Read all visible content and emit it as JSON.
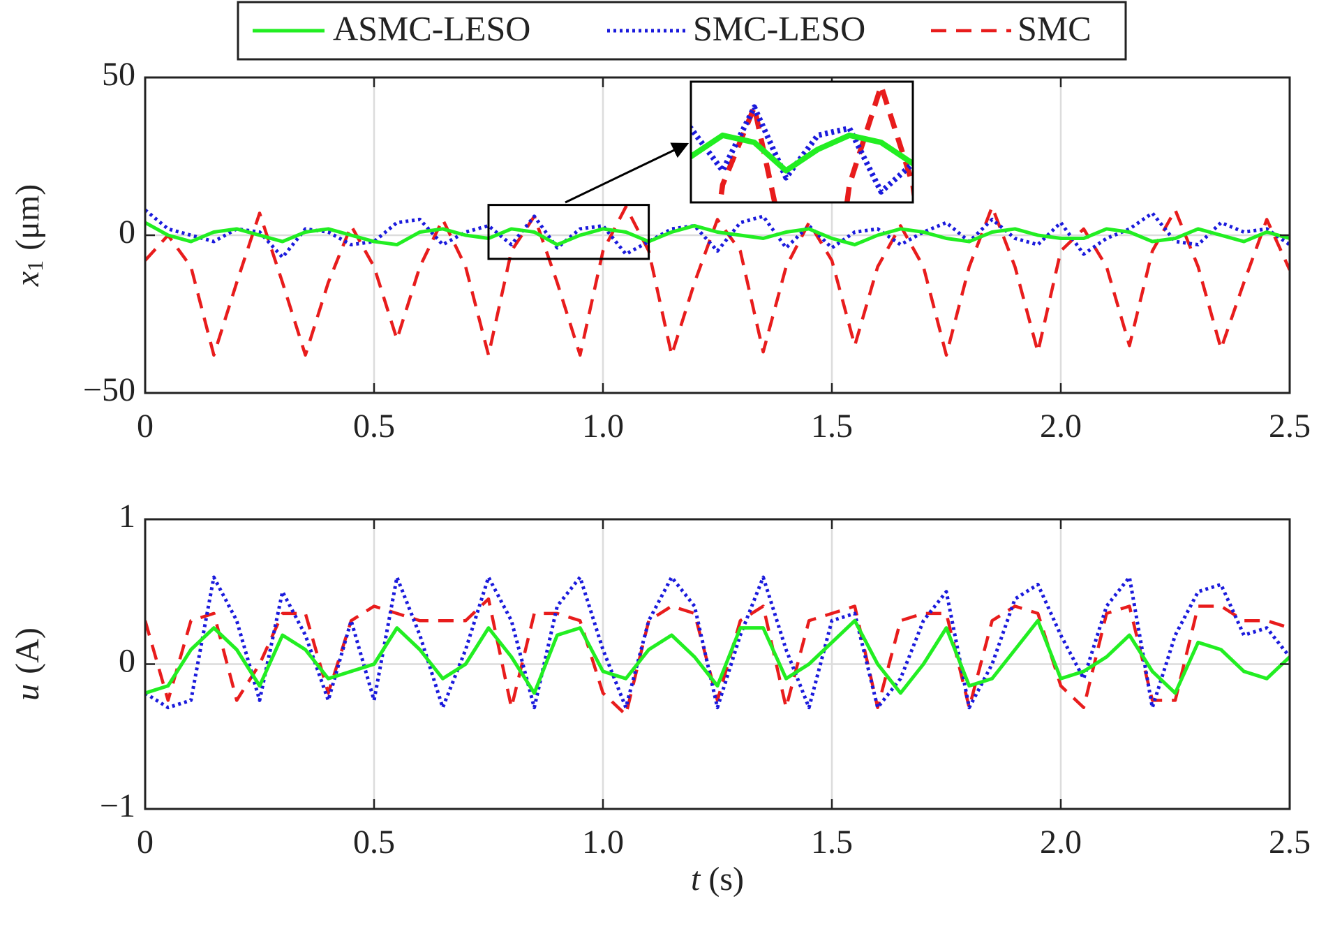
{
  "chart_data": [
    {
      "type": "line",
      "ylabel_symbol": "x",
      "ylabel_subscript": "1",
      "ylabel_unit": "(μm)",
      "x": [
        0,
        0.05,
        0.1,
        0.15,
        0.2,
        0.25,
        0.3,
        0.35,
        0.4,
        0.45,
        0.5,
        0.55,
        0.6,
        0.65,
        0.7,
        0.75,
        0.8,
        0.85,
        0.9,
        0.95,
        1,
        1.05,
        1.1,
        1.15,
        1.2,
        1.25,
        1.3,
        1.35,
        1.4,
        1.45,
        1.5,
        1.55,
        1.6,
        1.65,
        1.7,
        1.75,
        1.8,
        1.85,
        1.9,
        1.95,
        2,
        2.05,
        2.1,
        2.15,
        2.2,
        2.25,
        2.3,
        2.35,
        2.4,
        2.45,
        2.5
      ],
      "xlim": [
        0,
        2.5
      ],
      "xticks": [
        0,
        0.5,
        {
          "value": 1,
          "label": "1.0"
        },
        1.5,
        {
          "value": 2,
          "label": "2.0"
        },
        2.5
      ],
      "ylim": [
        -50,
        50
      ],
      "yticks": [
        {
          "value": -50,
          "label": "−50"
        },
        0,
        50
      ],
      "grid": true,
      "series": [
        {
          "name": "ASMC-LESO",
          "color": "#22ee22",
          "linestyle": "solid",
          "values": [
            4,
            0,
            -2,
            1,
            2,
            0,
            -2,
            1,
            2,
            0,
            -2,
            -3,
            1,
            2,
            0,
            -1,
            2,
            1,
            -3,
            0,
            2,
            1,
            -2,
            1,
            3,
            1,
            0,
            -1,
            1,
            2,
            -1,
            -3,
            0,
            2,
            1,
            -1,
            -2,
            1,
            2,
            0,
            -1,
            -1,
            2,
            1,
            -2,
            -1,
            2,
            0,
            -2,
            1,
            -1
          ]
        },
        {
          "name": "SMC-LESO",
          "color": "#1a1adc",
          "linestyle": "dotted",
          "values": [
            8,
            2,
            0,
            -2,
            2,
            1,
            -7,
            2,
            1,
            -3,
            -2,
            4,
            5,
            -3,
            1,
            3,
            -3,
            6,
            -4,
            2,
            3,
            -6,
            -2,
            2,
            3,
            -5,
            4,
            6,
            -4,
            3,
            -4,
            1,
            2,
            -3,
            1,
            4,
            -2,
            5,
            -1,
            -3,
            4,
            -6,
            -1,
            2,
            7,
            -2,
            -3,
            4,
            1,
            2,
            -3
          ]
        },
        {
          "name": "SMC",
          "color": "#e81c1c",
          "linestyle": "dashed",
          "values": [
            -8,
            0,
            -10,
            -38,
            -15,
            7,
            -15,
            -38,
            -15,
            3,
            -10,
            -33,
            -10,
            5,
            -10,
            -38,
            -5,
            6,
            -15,
            -38,
            -5,
            9,
            -5,
            -38,
            -15,
            5,
            -5,
            -37,
            -10,
            4,
            -8,
            -35,
            -10,
            3,
            -10,
            -38,
            -10,
            9,
            -10,
            -37,
            -5,
            2,
            -10,
            -35,
            -5,
            8,
            -10,
            -36,
            -15,
            5,
            -11
          ]
        }
      ]
    },
    {
      "type": "line",
      "ylabel_symbol": "u",
      "ylabel_unit": "(A)",
      "xlabel_symbol": "t",
      "xlabel_unit": "(s)",
      "x": [
        0,
        0.05,
        0.1,
        0.15,
        0.2,
        0.25,
        0.3,
        0.35,
        0.4,
        0.45,
        0.5,
        0.55,
        0.6,
        0.65,
        0.7,
        0.75,
        0.8,
        0.85,
        0.9,
        0.95,
        1,
        1.05,
        1.1,
        1.15,
        1.2,
        1.25,
        1.3,
        1.35,
        1.4,
        1.45,
        1.5,
        1.55,
        1.6,
        1.65,
        1.7,
        1.75,
        1.8,
        1.85,
        1.9,
        1.95,
        2,
        2.05,
        2.1,
        2.15,
        2.2,
        2.25,
        2.3,
        2.35,
        2.4,
        2.45,
        2.5
      ],
      "xlim": [
        0,
        2.5
      ],
      "xticks": [
        0,
        0.5,
        {
          "value": 1,
          "label": "1.0"
        },
        1.5,
        {
          "value": 2,
          "label": "2.0"
        },
        2.5
      ],
      "ylim": [
        -1,
        1
      ],
      "yticks": [
        {
          "value": -1,
          "label": "−1"
        },
        0,
        1
      ],
      "grid": true,
      "series": [
        {
          "color": "#22ee22",
          "linestyle": "solid",
          "values": [
            -0.2,
            -0.15,
            0.1,
            0.25,
            0.1,
            -0.15,
            0.2,
            0.1,
            -0.1,
            -0.05,
            0,
            0.25,
            0.1,
            -0.1,
            0,
            0.25,
            0.05,
            -0.2,
            0.2,
            0.25,
            -0.05,
            -0.1,
            0.1,
            0.2,
            0.05,
            -0.15,
            0.25,
            0.25,
            -0.1,
            0,
            0.15,
            0.3,
            0,
            -0.2,
            0,
            0.25,
            -0.15,
            -0.1,
            0.1,
            0.3,
            -0.1,
            -0.05,
            0.05,
            0.2,
            -0.05,
            -0.2,
            0.15,
            0.1,
            -0.05,
            -0.1,
            0.05
          ]
        },
        {
          "color": "#1a1adc",
          "linestyle": "dotted",
          "values": [
            -0.2,
            -0.3,
            -0.25,
            0.6,
            0.3,
            -0.25,
            0.5,
            0.2,
            -0.25,
            0.3,
            -0.25,
            0.6,
            0.2,
            -0.3,
            0.1,
            0.6,
            0.3,
            -0.3,
            0.4,
            0.6,
            0.1,
            -0.3,
            0.3,
            0.6,
            0.4,
            -0.3,
            0.2,
            0.6,
            0.1,
            -0.3,
            0.3,
            0.35,
            -0.3,
            -0.1,
            0.3,
            0.5,
            -0.3,
            0,
            0.45,
            0.55,
            0.2,
            -0.1,
            0.4,
            0.6,
            -0.3,
            0.2,
            0.5,
            0.55,
            0.2,
            0.25,
            0.05
          ]
        },
        {
          "color": "#e81c1c",
          "linestyle": "dashed",
          "values": [
            0.3,
            -0.25,
            0.3,
            0.35,
            -0.25,
            0,
            0.35,
            0.35,
            -0.2,
            0.3,
            0.4,
            0.35,
            0.3,
            0.3,
            0.3,
            0.45,
            -0.3,
            0.35,
            0.35,
            0.3,
            -0.2,
            -0.35,
            0.3,
            0.4,
            0.35,
            -0.25,
            0.3,
            0.4,
            -0.3,
            0.3,
            0.35,
            0.4,
            -0.3,
            0.3,
            0.35,
            0.35,
            -0.3,
            0.3,
            0.4,
            0.35,
            -0.15,
            -0.3,
            0.35,
            0.4,
            -0.25,
            -0.25,
            0.4,
            0.4,
            0.3,
            0.3,
            0.25
          ]
        }
      ]
    }
  ]
}
